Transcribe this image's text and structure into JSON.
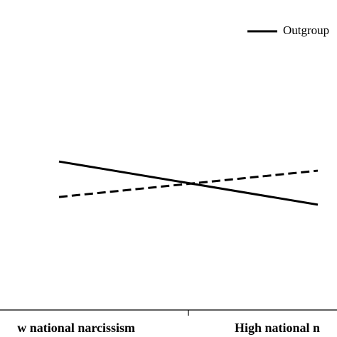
{
  "chart_data": {
    "type": "line",
    "categories": [
      "w national narcissism",
      "High national n"
    ],
    "series": [
      {
        "name": "Outgroup",
        "color": "#000000",
        "dash": false,
        "values": [
          5.02,
          3.56
        ]
      },
      {
        "color": "#000000",
        "dash": true,
        "values": [
          3.82,
          4.71
        ]
      }
    ],
    "ylim": [
      0,
      10
    ]
  }
}
